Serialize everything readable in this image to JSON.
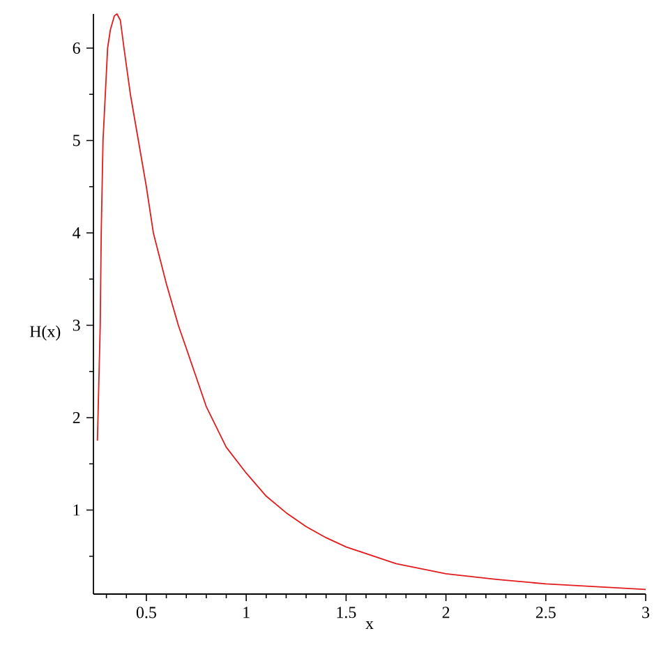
{
  "chart_data": {
    "type": "line",
    "xlabel": "x",
    "ylabel": "H(x)",
    "xlim": [
      0.235,
      3
    ],
    "ylim": [
      0.09,
      6.37
    ],
    "xticks": [
      0.5,
      1,
      1.5,
      2,
      2.5,
      3
    ],
    "yticks": [
      1,
      2,
      3,
      4,
      5,
      6
    ],
    "marker": "none",
    "line_style": "solid",
    "series": [
      {
        "color": "#e31a1c",
        "x": [
          0.255,
          0.269,
          0.274,
          0.283,
          0.306,
          0.32,
          0.34,
          0.353,
          0.37,
          0.388,
          0.42,
          0.46,
          0.5,
          0.535,
          0.6,
          0.66,
          0.7,
          0.8,
          0.9,
          1,
          1.1,
          1.2,
          1.3,
          1.4,
          1.5,
          1.75,
          2,
          2.25,
          2.5,
          2.75,
          3
        ],
        "values": [
          1.75,
          3,
          4,
          5,
          6,
          6.2,
          6.35,
          6.37,
          6.3,
          6,
          5.5,
          5,
          4.5,
          4,
          3.45,
          3,
          2.75,
          2.12,
          1.68,
          1.4,
          1.15,
          0.97,
          0.82,
          0.7,
          0.6,
          0.42,
          0.31,
          0.25,
          0.2,
          0.17,
          0.14
        ]
      }
    ]
  }
}
